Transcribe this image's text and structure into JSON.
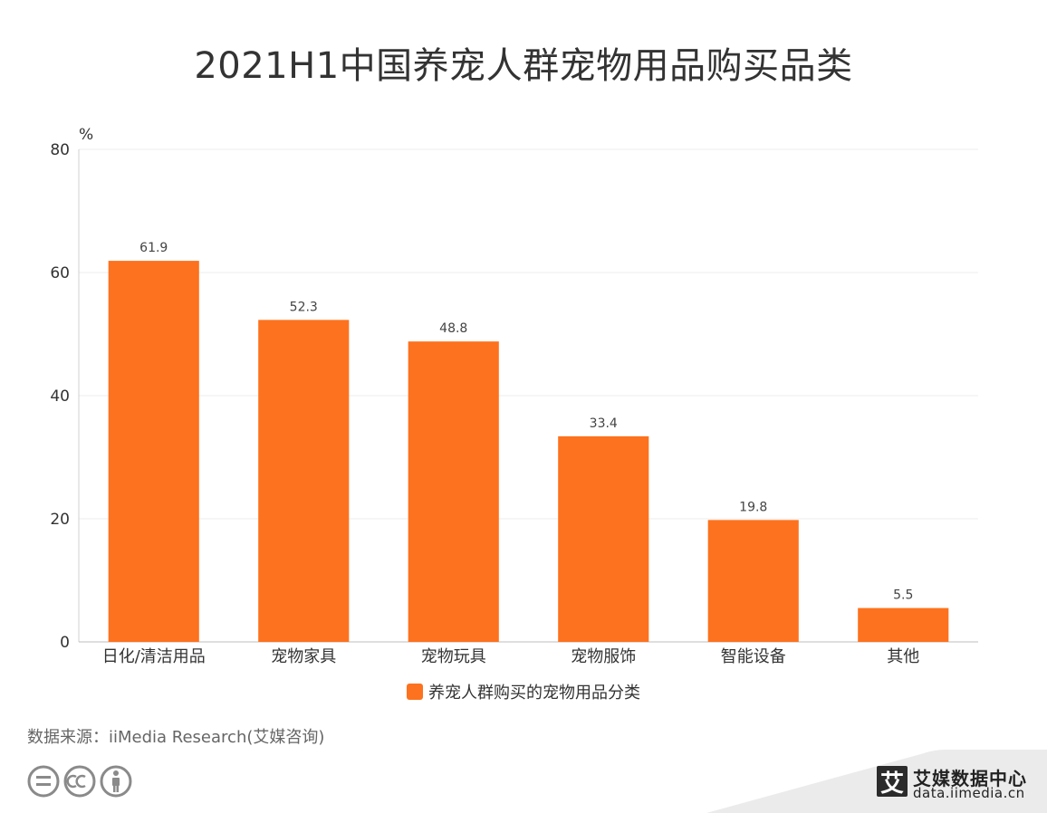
{
  "chart_data": {
    "type": "bar",
    "title": "2021H1中国养宠人群宠物用品购买品类",
    "ylabel": "%",
    "xlabel": "",
    "ylim": [
      0,
      80
    ],
    "yticks": [
      0,
      20,
      40,
      60,
      80
    ],
    "grid": true,
    "legend_position": "bottom",
    "categories": [
      "日化/清洁用品",
      "宠物家具",
      "宠物玩具",
      "宠物服饰",
      "智能设备",
      "其他"
    ],
    "series": [
      {
        "name": "养宠人群购买的宠物用品分类",
        "values": [
          61.9,
          52.3,
          48.8,
          33.4,
          19.8,
          5.5
        ],
        "color": "#fd721e"
      }
    ]
  },
  "source": "数据来源：iiMedia Research(艾媒咨询)",
  "brand": {
    "logo_char": "艾",
    "name": "艾媒数据中心",
    "url": "data.iimedia.cn"
  },
  "icons": [
    "equals-circle-icon",
    "cc-circle-icon",
    "person-circle-icon"
  ]
}
